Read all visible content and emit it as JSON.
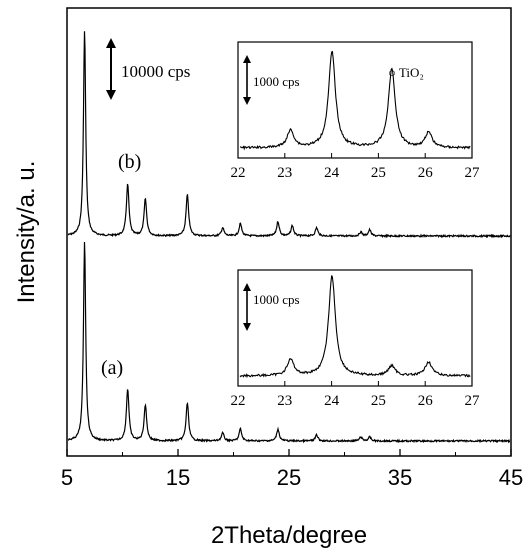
{
  "chart_data": {
    "type": "line",
    "xlabel": "2Theta/degree",
    "ylabel": "Intensity/a. u.",
    "xlim": [
      5,
      45
    ],
    "x_ticks": [
      "5",
      "15",
      "25",
      "35",
      "45"
    ],
    "y_ticks_shown": false,
    "scale_bar": "10000 cps",
    "series": [
      {
        "name": "(b)",
        "peaks": [
          {
            "x": 6.5,
            "rel_height": 1.0
          },
          {
            "x": 10.4,
            "rel_height": 0.25
          },
          {
            "x": 12.0,
            "rel_height": 0.18
          },
          {
            "x": 15.8,
            "rel_height": 0.2
          },
          {
            "x": 19.0,
            "rel_height": 0.04
          },
          {
            "x": 20.6,
            "rel_height": 0.06
          },
          {
            "x": 24.0,
            "rel_height": 0.07
          },
          {
            "x": 25.3,
            "rel_height": 0.05
          },
          {
            "x": 27.5,
            "rel_height": 0.04
          },
          {
            "x": 31.5,
            "rel_height": 0.02
          },
          {
            "x": 32.3,
            "rel_height": 0.03
          }
        ],
        "inset": {
          "xlim": [
            22,
            27
          ],
          "x_ticks": [
            "22",
            "23",
            "24",
            "25",
            "26",
            "27"
          ],
          "scale_bar": "1000 cps",
          "annotation": "○ TiO₂",
          "peaks": [
            {
              "x": 23.1,
              "rel_height": 0.18
            },
            {
              "x": 24.0,
              "rel_height": 1.0
            },
            {
              "x": 25.3,
              "rel_height": 0.82
            },
            {
              "x": 26.1,
              "rel_height": 0.16
            }
          ]
        }
      },
      {
        "name": "(a)",
        "peaks": [
          {
            "x": 6.5,
            "rel_height": 1.0
          },
          {
            "x": 10.4,
            "rel_height": 0.26
          },
          {
            "x": 12.0,
            "rel_height": 0.18
          },
          {
            "x": 15.8,
            "rel_height": 0.19
          },
          {
            "x": 19.0,
            "rel_height": 0.04
          },
          {
            "x": 20.6,
            "rel_height": 0.06
          },
          {
            "x": 24.0,
            "rel_height": 0.06
          },
          {
            "x": 27.5,
            "rel_height": 0.03
          },
          {
            "x": 31.5,
            "rel_height": 0.02
          },
          {
            "x": 32.3,
            "rel_height": 0.02
          }
        ],
        "inset": {
          "xlim": [
            22,
            27
          ],
          "x_ticks": [
            "22",
            "23",
            "24",
            "25",
            "26",
            "27"
          ],
          "scale_bar": "1000 cps",
          "peaks": [
            {
              "x": 23.1,
              "rel_height": 0.16
            },
            {
              "x": 24.0,
              "rel_height": 1.0
            },
            {
              "x": 25.3,
              "rel_height": 0.1
            },
            {
              "x": 26.1,
              "rel_height": 0.14
            }
          ]
        }
      }
    ]
  }
}
